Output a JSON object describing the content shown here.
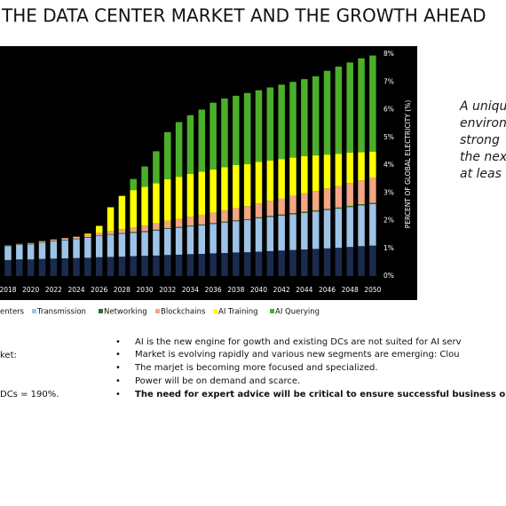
{
  "slide": {
    "title": "THE DATA CENTER MARKET AND THE GROWTH AHEAD",
    "side_text": [
      "A uniqu",
      "environ",
      "strong",
      "the nex",
      "at leas"
    ],
    "left_text": [
      "ket:",
      "DCs = 190%."
    ],
    "bullets": [
      "AI is the new engine for gowth and existing DCs are not suited for AI serv",
      "Market is evolving rapidly and various new segments are emerging: Clou",
      "The marjet is becoming more focused and specialized.",
      "Power will be on demand and scarce.",
      "The need for expert advice will be critical to ensure successful business o"
    ]
  },
  "chart_data": {
    "type": "stacked_bar",
    "y_label": "PERCENT OF GLOBAL ELECTRICITY (%)",
    "categories": [
      "2018",
      null,
      "2020",
      null,
      "2022",
      null,
      "2024",
      null,
      "2026",
      null,
      "2028",
      null,
      "2030",
      null,
      "2032",
      null,
      "2034",
      null,
      "2036",
      null,
      "2038",
      null,
      "2040",
      null,
      "2042",
      null,
      "2044",
      null,
      "2046",
      null,
      "2048",
      null,
      "2050"
    ],
    "series": [
      {
        "name": "enters",
        "color": "#1b2b4d",
        "values": [
          0.58,
          0.6,
          0.6,
          0.62,
          0.63,
          0.64,
          0.65,
          0.66,
          0.68,
          0.69,
          0.7,
          0.72,
          0.73,
          0.74,
          0.76,
          0.77,
          0.79,
          0.8,
          0.82,
          0.83,
          0.85,
          0.86,
          0.88,
          0.9,
          0.92,
          0.94,
          0.96,
          0.98,
          1.0,
          1.02,
          1.05,
          1.08,
          1.1
        ]
      },
      {
        "name": "Transmission",
        "color": "#9dc3e6",
        "values": [
          0.5,
          0.52,
          0.54,
          0.58,
          0.62,
          0.65,
          0.68,
          0.72,
          0.76,
          0.8,
          0.82,
          0.84,
          0.86,
          0.9,
          0.94,
          0.97,
          1.0,
          1.03,
          1.06,
          1.1,
          1.13,
          1.16,
          1.2,
          1.23,
          1.26,
          1.29,
          1.32,
          1.35,
          1.38,
          1.41,
          1.44,
          1.47,
          1.5
        ]
      },
      {
        "name": "Networking",
        "color": "#2e6b2e",
        "values": [
          0.02,
          0.02,
          0.02,
          0.02,
          0.02,
          0.02,
          0.02,
          0.02,
          0.02,
          0.02,
          0.03,
          0.03,
          0.03,
          0.03,
          0.03,
          0.03,
          0.03,
          0.03,
          0.03,
          0.03,
          0.03,
          0.03,
          0.04,
          0.04,
          0.04,
          0.04,
          0.04,
          0.04,
          0.04,
          0.04,
          0.04,
          0.04,
          0.04
        ]
      },
      {
        "name": "Blockchains",
        "color": "#f4a582",
        "values": [
          0.01,
          0.02,
          0.03,
          0.04,
          0.05,
          0.06,
          0.07,
          0.08,
          0.1,
          0.12,
          0.14,
          0.16,
          0.2,
          0.23,
          0.26,
          0.29,
          0.32,
          0.35,
          0.38,
          0.41,
          0.44,
          0.47,
          0.5,
          0.54,
          0.58,
          0.62,
          0.66,
          0.7,
          0.74,
          0.78,
          0.82,
          0.86,
          0.9
        ]
      },
      {
        "name": "AI Training",
        "color": "#ffff00",
        "values": [
          0,
          0,
          0,
          0,
          0,
          0,
          0,
          0.05,
          0.25,
          0.85,
          1.2,
          1.35,
          1.4,
          1.45,
          1.5,
          1.52,
          1.54,
          1.55,
          1.55,
          1.55,
          1.55,
          1.52,
          1.5,
          1.46,
          1.42,
          1.38,
          1.34,
          1.28,
          1.22,
          1.16,
          1.1,
          1.02,
          0.95
        ]
      },
      {
        "name": "AI Querying",
        "color": "#4caf2a",
        "values": [
          0,
          0,
          0,
          0,
          0,
          0,
          0,
          0,
          0,
          0,
          0,
          0.4,
          0.73,
          1.15,
          1.7,
          1.97,
          2.12,
          2.24,
          2.41,
          2.48,
          2.5,
          2.56,
          2.58,
          2.63,
          2.68,
          2.73,
          2.78,
          2.85,
          3.02,
          3.14,
          3.25,
          3.38,
          3.46
        ]
      }
    ],
    "ylim": [
      0,
      8
    ],
    "yticks": [
      {
        "value": 0,
        "label": "0%"
      },
      {
        "value": 1,
        "label": "1%"
      },
      {
        "value": 2,
        "label": "2%"
      },
      {
        "value": 3,
        "label": "3%"
      },
      {
        "value": 4,
        "label": "4%"
      },
      {
        "value": 5,
        "label": "5%"
      },
      {
        "value": 6,
        "label": "6%"
      },
      {
        "value": 7,
        "label": "7%"
      },
      {
        "value": 8,
        "label": "8%"
      }
    ],
    "y_axis_side": "right",
    "grid": false,
    "legend": "bottom"
  }
}
